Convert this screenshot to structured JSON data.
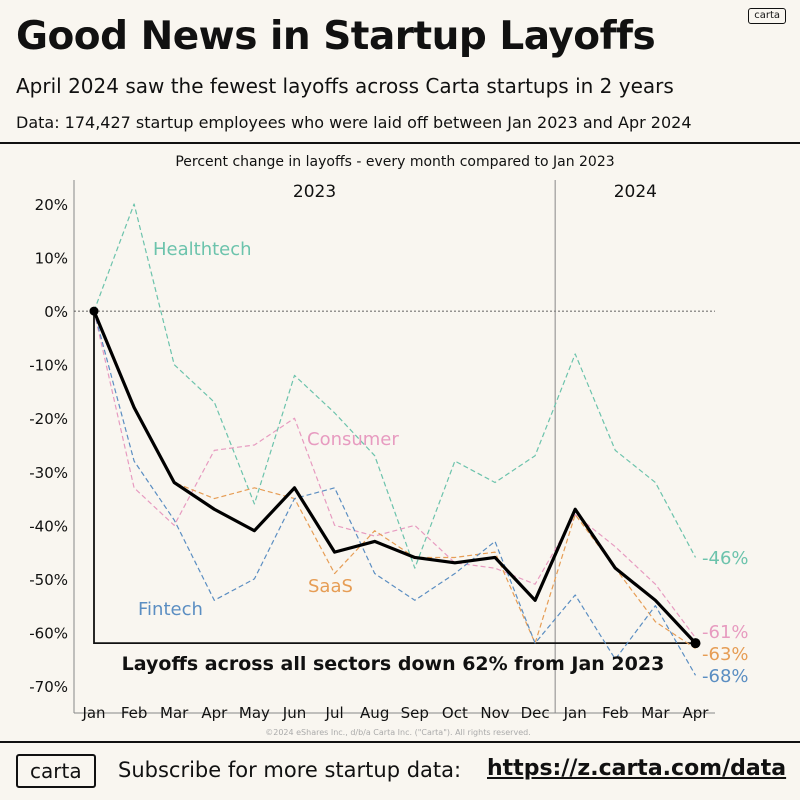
{
  "header": {
    "brand": "carta",
    "title": "Good News in Startup Layoffs",
    "subtitle": "April 2024 saw the fewest layoffs across Carta startups in 2 years",
    "data_note": "Data: 174,427 startup employees who were laid off between Jan 2023 and Apr 2024"
  },
  "footer": {
    "brand": "carta",
    "subscribe_text": "Subscribe for more startup data:",
    "link_text": "https://z.carta.com/data"
  },
  "colors": {
    "Healthtech": "#6cc3ac",
    "Consumer": "#e79bc0",
    "SaaS": "#e69d55",
    "Fintech": "#5b8ec2",
    "All": "#000000"
  },
  "chart_data": {
    "type": "line",
    "title": "Percent change in layoffs - every month compared to Jan 2023",
    "year_labels": [
      {
        "label": "2023",
        "from_index": 0,
        "to_index": 11
      },
      {
        "label": "2024",
        "from_index": 12,
        "to_index": 15
      }
    ],
    "categories": [
      "Jan",
      "Feb",
      "Mar",
      "Apr",
      "May",
      "Jun",
      "Jul",
      "Aug",
      "Sep",
      "Oct",
      "Nov",
      "Dec",
      "Jan",
      "Feb",
      "Mar",
      "Apr"
    ],
    "yticks": [
      "20%",
      "10%",
      "0%",
      "-10%",
      "-20%",
      "-30%",
      "-40%",
      "-50%",
      "-60%",
      "-70%"
    ],
    "ylim": [
      -73,
      25
    ],
    "series": [
      {
        "name": "Healthtech",
        "label_text": "Healthtech",
        "end_label": "-46%",
        "style": "dashed",
        "values": [
          0,
          20,
          -10,
          -17,
          -36,
          -12,
          -19,
          -27,
          -48,
          -28,
          -32,
          -27,
          -8,
          -26,
          -32,
          -46
        ]
      },
      {
        "name": "Consumer",
        "label_text": "Consumer",
        "end_label": "-61%",
        "style": "dashed",
        "values": [
          0,
          -33,
          -40,
          -26,
          -25,
          -20,
          -40,
          -42,
          -40,
          -47,
          -48,
          -51,
          -38,
          -44,
          -51,
          -61
        ]
      },
      {
        "name": "SaaS",
        "label_text": "SaaS",
        "end_label": "-63%",
        "style": "dashed",
        "values": [
          0,
          -18,
          -32,
          -35,
          -33,
          -35,
          -49,
          -41,
          -46,
          -46,
          -45,
          -62,
          -38,
          -48,
          -58,
          -63
        ]
      },
      {
        "name": "Fintech",
        "label_text": "Fintech",
        "end_label": "-68%",
        "style": "dashed",
        "values": [
          0,
          -28,
          -39,
          -54,
          -50,
          -35,
          -33,
          -49,
          -54,
          -49,
          -43,
          -62,
          -53,
          -65,
          -55,
          -68
        ]
      },
      {
        "name": "All sectors",
        "style": "solid",
        "values": [
          0,
          -18,
          -32,
          -37,
          -41,
          -33,
          -45,
          -43,
          -46,
          -47,
          -46,
          -54,
          -37,
          -48,
          -54,
          -62
        ]
      }
    ],
    "annotation": "Layoffs across all sectors down 62% from Jan 2023",
    "copyright": "©2024 eShares Inc., d/b/a Carta Inc. (\"Carta\"). All rights reserved."
  }
}
